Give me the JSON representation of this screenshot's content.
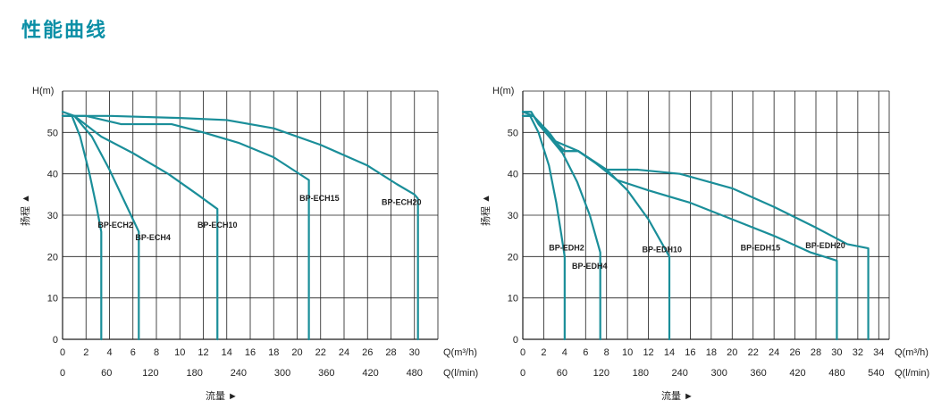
{
  "page": {
    "title": "性能曲线"
  },
  "colors": {
    "curve": "#1a8e99",
    "grid": "#1c1c1c",
    "title": "#0b8fa6"
  },
  "chart_data": [
    {
      "type": "line",
      "y_axis_label": "H(m)",
      "y_side_label": "扬程 ▲",
      "x_axis_label": "Q(m³/h)",
      "x2_axis_label": "Q(l/min)",
      "x_footer_label": "流量 ►",
      "xlim": [
        0,
        32
      ],
      "ylim": [
        0,
        60
      ],
      "x_ticks": [
        0,
        2,
        4,
        6,
        8,
        10,
        12,
        14,
        16,
        18,
        20,
        22,
        24,
        26,
        28,
        30
      ],
      "y_ticks": [
        0,
        10,
        20,
        30,
        40,
        50
      ],
      "x2_ticks": [
        0,
        60,
        120,
        180,
        240,
        300,
        360,
        420,
        480
      ],
      "grid": true,
      "series": [
        {
          "name": "BP-ECH2",
          "points": [
            [
              0,
              54
            ],
            [
              0.8,
              54
            ],
            [
              1.5,
              49
            ],
            [
              2.3,
              40
            ],
            [
              2.9,
              32
            ],
            [
              3.3,
              26
            ],
            [
              3.3,
              0
            ]
          ]
        },
        {
          "name": "BP-ECH4",
          "points": [
            [
              0,
              54
            ],
            [
              1,
              54
            ],
            [
              2.5,
              49
            ],
            [
              4,
              41
            ],
            [
              5.5,
              32
            ],
            [
              6.5,
              26
            ],
            [
              6.5,
              0
            ]
          ]
        },
        {
          "name": "BP-ECH10",
          "points": [
            [
              0,
              54
            ],
            [
              1,
              54
            ],
            [
              3.3,
              49
            ],
            [
              6,
              45
            ],
            [
              9,
              40
            ],
            [
              11.5,
              35
            ],
            [
              13.2,
              31.5
            ],
            [
              13.2,
              0
            ]
          ]
        },
        {
          "name": "BP-ECH15",
          "points": [
            [
              0,
              54
            ],
            [
              2,
              54
            ],
            [
              5,
              52
            ],
            [
              9.3,
              52
            ],
            [
              12,
              50
            ],
            [
              15,
              47.5
            ],
            [
              18,
              44
            ],
            [
              21,
              38.5
            ],
            [
              21,
              0
            ]
          ]
        },
        {
          "name": "BP-ECH20",
          "points": [
            [
              0,
              55
            ],
            [
              1,
              54
            ],
            [
              4,
              54
            ],
            [
              10,
              53.5
            ],
            [
              14,
              53
            ],
            [
              18,
              51
            ],
            [
              22,
              47
            ],
            [
              26,
              42
            ],
            [
              28.5,
              37.5
            ],
            [
              30,
              35
            ],
            [
              30.3,
              34
            ],
            [
              30.3,
              0
            ]
          ]
        }
      ]
    },
    {
      "type": "line",
      "y_axis_label": "H(m)",
      "y_side_label": "扬程 ▲",
      "x_axis_label": "Q(m³/h)",
      "x2_axis_label": "Q(l/min)",
      "x_footer_label": "流量 ►",
      "xlim": [
        0,
        35
      ],
      "ylim": [
        0,
        60
      ],
      "x_ticks": [
        0,
        2,
        4,
        6,
        8,
        10,
        12,
        14,
        16,
        18,
        20,
        22,
        24,
        26,
        28,
        30,
        32,
        34
      ],
      "y_ticks": [
        0,
        10,
        20,
        30,
        40,
        50
      ],
      "x2_ticks": [
        0,
        60,
        120,
        180,
        240,
        300,
        360,
        420,
        480,
        540
      ],
      "grid": true,
      "series": [
        {
          "name": "BP-EDH2",
          "points": [
            [
              0,
              54
            ],
            [
              0.7,
              54
            ],
            [
              1.5,
              50
            ],
            [
              2.5,
              42
            ],
            [
              3.2,
              33
            ],
            [
              3.7,
              25
            ],
            [
              4,
              20
            ],
            [
              4,
              0
            ]
          ]
        },
        {
          "name": "BP-EDH4",
          "points": [
            [
              0,
              55
            ],
            [
              0.8,
              55
            ],
            [
              1.5,
              52
            ],
            [
              2.5,
              49
            ],
            [
              3.8,
              45
            ],
            [
              5.2,
              38
            ],
            [
              6.4,
              30
            ],
            [
              7.4,
              21
            ],
            [
              7.4,
              0
            ]
          ]
        },
        {
          "name": "BP-EDH10",
          "points": [
            [
              0,
              54
            ],
            [
              1,
              54
            ],
            [
              2.5,
              50
            ],
            [
              3.8,
              45.5
            ],
            [
              5.3,
              45.5
            ],
            [
              8,
              41
            ],
            [
              10,
              36
            ],
            [
              12,
              29
            ],
            [
              14,
              20
            ],
            [
              14,
              0
            ]
          ]
        },
        {
          "name": "BP-EDH15",
          "points": [
            [
              0,
              54
            ],
            [
              1,
              54
            ],
            [
              3,
              48
            ],
            [
              4,
              45.5
            ],
            [
              5.3,
              45.5
            ],
            [
              7,
              42.5
            ],
            [
              9,
              38.5
            ],
            [
              12,
              36
            ],
            [
              16,
              33
            ],
            [
              20,
              29
            ],
            [
              24,
              25
            ],
            [
              27.5,
              21
            ],
            [
              30,
              19
            ],
            [
              30,
              0
            ]
          ]
        },
        {
          "name": "BP-EDH20",
          "points": [
            [
              0,
              55
            ],
            [
              1,
              54
            ],
            [
              3,
              48
            ],
            [
              5.3,
              45.5
            ],
            [
              8,
              41
            ],
            [
              11,
              41
            ],
            [
              15,
              40
            ],
            [
              20,
              36.5
            ],
            [
              24,
              32
            ],
            [
              28,
              27
            ],
            [
              31,
              23
            ],
            [
              33,
              22
            ],
            [
              33,
              0
            ]
          ]
        }
      ]
    }
  ]
}
